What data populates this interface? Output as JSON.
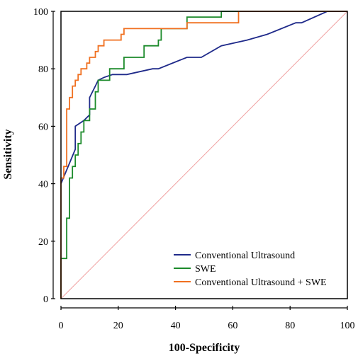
{
  "chart_data": {
    "type": "line",
    "title": "",
    "xlabel": "100-Specificity",
    "ylabel": "Sensitivity",
    "xlim": [
      0,
      100
    ],
    "ylim": [
      0,
      100
    ],
    "xticks": [
      0,
      20,
      40,
      60,
      80,
      100
    ],
    "yticks": [
      0,
      20,
      40,
      60,
      80,
      100
    ],
    "grid": false,
    "legend_position": "bottom-right",
    "reference_line": {
      "x": [
        0,
        100
      ],
      "y": [
        0,
        100
      ],
      "color": "#f0a0a0"
    },
    "series": [
      {
        "name": "Conventional Ultrasound",
        "color": "#1f2a8a",
        "x": [
          0,
          5,
          5,
          8,
          10,
          10,
          12,
          13,
          15,
          18,
          23,
          32,
          34,
          44,
          49,
          56,
          65,
          72,
          82,
          84,
          93,
          100
        ],
        "y": [
          40,
          52,
          60,
          62,
          64,
          70,
          74,
          76,
          77,
          78,
          78,
          80,
          80,
          84,
          84,
          88,
          90,
          92,
          96,
          96,
          100,
          100
        ]
      },
      {
        "name": "SWE",
        "color": "#1b8a2a",
        "x": [
          0,
          0,
          2,
          2,
          3,
          3,
          4,
          4,
          5,
          5,
          6,
          6,
          7,
          7,
          8,
          8,
          10,
          10,
          12,
          12,
          13,
          13,
          17,
          17,
          22,
          22,
          29,
          29,
          34,
          34,
          35,
          35,
          44,
          44,
          56,
          56,
          62,
          62,
          100
        ],
        "y": [
          0,
          14,
          14,
          28,
          28,
          42,
          42,
          46,
          46,
          50,
          50,
          54,
          54,
          58,
          58,
          62,
          62,
          66,
          66,
          72,
          72,
          76,
          76,
          80,
          80,
          84,
          84,
          88,
          88,
          90,
          90,
          94,
          94,
          98,
          98,
          100,
          100,
          100,
          100
        ]
      },
      {
        "name": "Conventional Ultrasound + SWE",
        "color": "#f07020",
        "x": [
          0,
          0,
          1,
          1,
          2,
          2,
          3,
          3,
          4,
          4,
          5,
          5,
          6,
          6,
          7,
          7,
          9,
          9,
          10,
          10,
          12,
          12,
          13,
          13,
          15,
          15,
          21,
          21,
          22,
          22,
          24,
          24,
          35,
          35,
          44,
          44,
          62,
          62,
          100
        ],
        "y": [
          0,
          42,
          42,
          46,
          46,
          66,
          66,
          70,
          70,
          74,
          74,
          76,
          76,
          78,
          78,
          80,
          80,
          82,
          82,
          84,
          84,
          86,
          86,
          88,
          88,
          90,
          90,
          92,
          92,
          94,
          94,
          94,
          94,
          94,
          94,
          96,
          96,
          100,
          100
        ]
      }
    ]
  }
}
